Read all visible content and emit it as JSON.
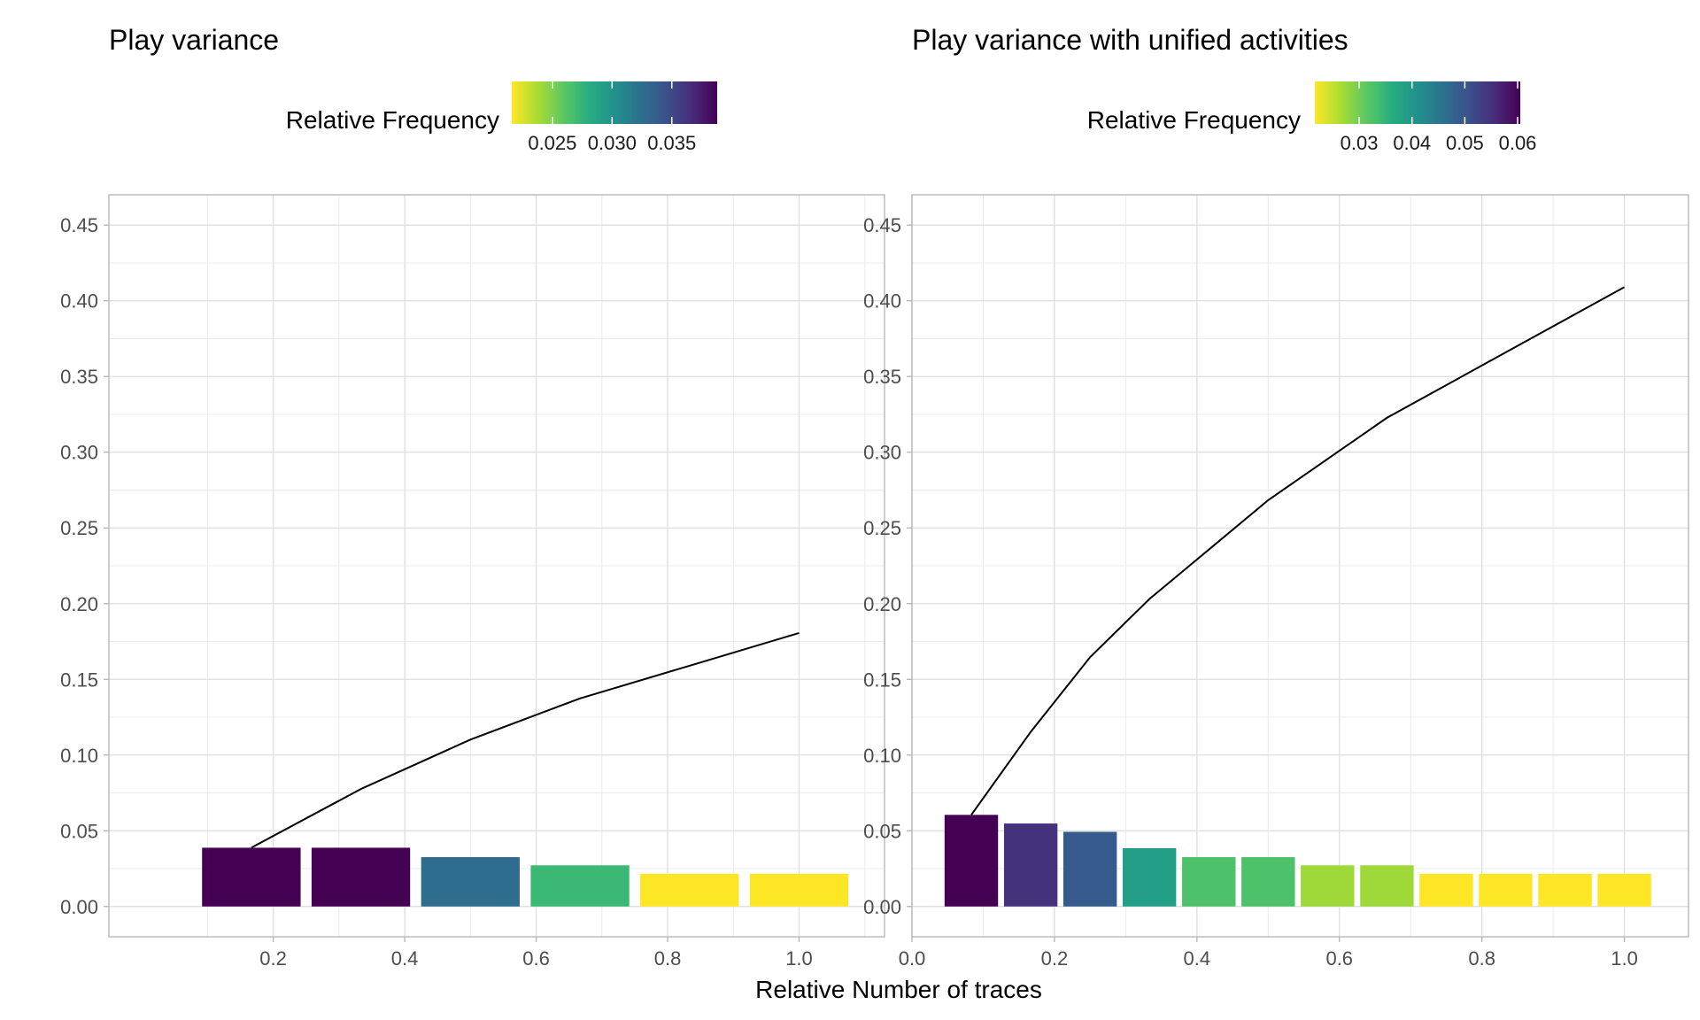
{
  "chart_data": [
    {
      "type": "bar",
      "title": "Play variance",
      "legend": {
        "title": "Relative Frequency",
        "position": "top",
        "colormap": "viridis-reversed",
        "range": [
          0.0216,
          0.0388
        ],
        "ticks": [
          "0.025",
          "0.030",
          "0.035"
        ],
        "tick_values": [
          0.025,
          0.03,
          0.035
        ]
      },
      "xlim": [
        -0.05,
        1.13
      ],
      "ylim": [
        -0.02,
        0.47
      ],
      "x_ticks": [
        "0.2",
        "0.4",
        "0.6",
        "0.8",
        "1.0"
      ],
      "x_tick_values": [
        0.2,
        0.4,
        0.6,
        0.8,
        1.0
      ],
      "y_ticks": [
        "0.00",
        "0.05",
        "0.10",
        "0.15",
        "0.20",
        "0.25",
        "0.30",
        "0.35",
        "0.40",
        "0.45"
      ],
      "y_tick_values": [
        0,
        0.05,
        0.1,
        0.15,
        0.2,
        0.25,
        0.3,
        0.35,
        0.4,
        0.45
      ],
      "grid": true,
      "bars": {
        "x": [
          0.1667,
          0.3333,
          0.5,
          0.6667,
          0.8333,
          1.0
        ],
        "values": [
          0.0388,
          0.0388,
          0.0326,
          0.0272,
          0.0216,
          0.0216
        ]
      },
      "line": {
        "x": [
          0.1667,
          0.3333,
          0.5,
          0.6667,
          0.8333,
          1.0
        ],
        "y": [
          0.0388,
          0.0776,
          0.1102,
          0.1374,
          0.159,
          0.1806
        ]
      }
    },
    {
      "type": "bar",
      "title": "Play variance with unified activities",
      "legend": {
        "title": "Relative Frequency",
        "position": "top",
        "colormap": "viridis-reversed",
        "range": [
          0.0216,
          0.0605
        ],
        "ticks": [
          "0.03",
          "0.04",
          "0.05",
          "0.06"
        ],
        "tick_values": [
          0.03,
          0.04,
          0.05,
          0.06
        ]
      },
      "xlim": [
        0.0,
        1.09
      ],
      "ylim": [
        -0.02,
        0.47
      ],
      "x_ticks": [
        "0.0",
        "0.2",
        "0.4",
        "0.6",
        "0.8",
        "1.0"
      ],
      "x_tick_values": [
        0.0,
        0.2,
        0.4,
        0.6,
        0.8,
        1.0
      ],
      "y_ticks": [
        "0.00",
        "0.05",
        "0.10",
        "0.15",
        "0.20",
        "0.25",
        "0.30",
        "0.35",
        "0.40",
        "0.45"
      ],
      "y_tick_values": [
        0,
        0.05,
        0.1,
        0.15,
        0.2,
        0.25,
        0.3,
        0.35,
        0.4,
        0.45
      ],
      "grid": true,
      "bars": {
        "x": [
          0.0833,
          0.1667,
          0.25,
          0.3333,
          0.4167,
          0.5,
          0.5833,
          0.6667,
          0.75,
          0.8333,
          0.9167,
          1.0
        ],
        "values": [
          0.0605,
          0.0548,
          0.0493,
          0.0385,
          0.0326,
          0.0326,
          0.0272,
          0.0272,
          0.0216,
          0.0216,
          0.0216,
          0.0216
        ]
      },
      "line": {
        "x": [
          0.0833,
          0.1667,
          0.25,
          0.3333,
          0.4167,
          0.5,
          0.5833,
          0.6667,
          0.75,
          0.8333,
          0.9167,
          1.0
        ],
        "y": [
          0.0605,
          0.1153,
          0.1646,
          0.2031,
          0.2357,
          0.2683,
          0.2955,
          0.3227,
          0.3443,
          0.3659,
          0.3875,
          0.4091
        ]
      }
    }
  ],
  "shared_xlabel": "Relative Number of traces"
}
